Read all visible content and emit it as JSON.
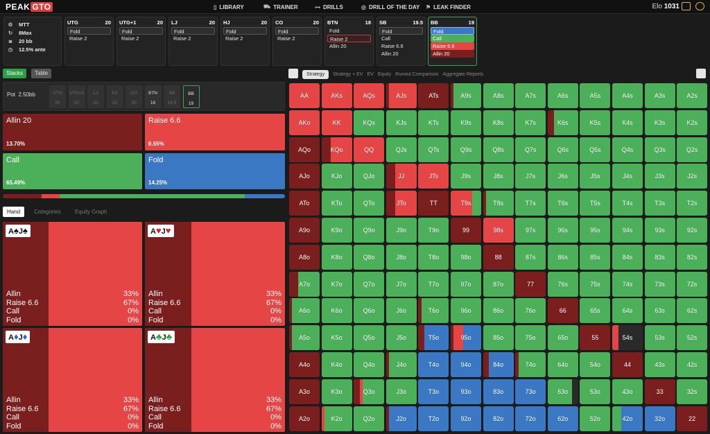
{
  "topbar": {
    "logo_a": "PEAK",
    "logo_b": "GTO",
    "nav": [
      {
        "icon": "book-icon",
        "glyph": "▯",
        "label": "LIBRARY"
      },
      {
        "icon": "car-icon",
        "glyph": "⛟",
        "label": "TRAINER"
      },
      {
        "icon": "dumbbell-icon",
        "glyph": "⊶",
        "label": "DRILLS"
      },
      {
        "icon": "target-icon",
        "glyph": "◎",
        "label": "DRILL OF THE DAY"
      },
      {
        "icon": "flag-icon",
        "glyph": "⚑",
        "label": "LEAK FINDER"
      }
    ],
    "elo_label": "Elo",
    "elo_value": "1031"
  },
  "game_info": [
    {
      "icon": "gear-icon",
      "glyph": "⚙",
      "text": "MTT"
    },
    {
      "icon": "refresh-icon",
      "glyph": "↻",
      "text": "8Max"
    },
    {
      "icon": "camera-icon",
      "glyph": "◙",
      "text": "20 bb"
    },
    {
      "icon": "clock-icon",
      "glyph": "◷",
      "text": "12.5% ante"
    }
  ],
  "positions": [
    {
      "name": "UTG",
      "stack": "20",
      "actions": [
        {
          "label": "Fold",
          "style": "sel"
        },
        {
          "label": "Raise 2",
          "style": ""
        }
      ]
    },
    {
      "name": "UTG+1",
      "stack": "20",
      "actions": [
        {
          "label": "Fold",
          "style": "sel"
        },
        {
          "label": "Raise 2",
          "style": ""
        }
      ]
    },
    {
      "name": "LJ",
      "stack": "20",
      "actions": [
        {
          "label": "Fold",
          "style": "sel"
        },
        {
          "label": "Raise 2",
          "style": ""
        }
      ]
    },
    {
      "name": "HJ",
      "stack": "20",
      "actions": [
        {
          "label": "Fold",
          "style": "sel"
        },
        {
          "label": "Raise 2",
          "style": ""
        }
      ]
    },
    {
      "name": "CO",
      "stack": "20",
      "actions": [
        {
          "label": "Fold",
          "style": "sel"
        },
        {
          "label": "Raise 2",
          "style": ""
        }
      ]
    },
    {
      "name": "BTN",
      "stack": "18",
      "actions": [
        {
          "label": "Fold",
          "style": ""
        },
        {
          "label": "Raise 2",
          "style": "raise-sel"
        },
        {
          "label": "Allin 20",
          "style": ""
        }
      ]
    },
    {
      "name": "SB",
      "stack": "19.5",
      "actions": [
        {
          "label": "Fold",
          "style": "sel"
        },
        {
          "label": "Call",
          "style": ""
        },
        {
          "label": "Raise 6.6",
          "style": ""
        },
        {
          "label": "Allin 20",
          "style": ""
        }
      ]
    },
    {
      "name": "BB",
      "stack": "19",
      "active": true,
      "actions": [
        {
          "label": "Fold",
          "style": "fold-b"
        },
        {
          "label": "Call",
          "style": "call-g"
        },
        {
          "label": "Raise 6.6",
          "style": "raise-r"
        },
        {
          "label": "Allin 20",
          "style": "allin-d"
        }
      ]
    }
  ],
  "view_toggle": {
    "stacks": "Stacks",
    "table": "Table"
  },
  "pot": {
    "label": "Pot",
    "value": "2.50bb",
    "chips": [
      {
        "pos": "UTG",
        "stack": "20"
      },
      {
        "pos": "UTG+1",
        "stack": "20"
      },
      {
        "pos": "LJ",
        "stack": "20"
      },
      {
        "pos": "HJ",
        "stack": "20"
      },
      {
        "pos": "CO",
        "stack": "20"
      },
      {
        "pos": "BTN",
        "stack": "18"
      },
      {
        "pos": "SB",
        "stack": "19.5"
      },
      {
        "pos": "BB",
        "stack": "19"
      }
    ]
  },
  "summary": {
    "allin": {
      "label": "Allin 20",
      "pct": "13.70%"
    },
    "raise": {
      "label": "Raise 6.6",
      "pct": "6.55%"
    },
    "call": {
      "label": "Call",
      "pct": "65.49%"
    },
    "fold": {
      "label": "Fold",
      "pct": "14.25%"
    }
  },
  "freq_bar": [
    {
      "color": "#7a1e1e",
      "pct": 13.7
    },
    {
      "color": "#e54545",
      "pct": 6.55
    },
    {
      "color": "#4caf5a",
      "pct": 65.49
    },
    {
      "color": "#3b78c4",
      "pct": 14.25
    }
  ],
  "detail_tabs": [
    "Hand",
    "Categories",
    "Equity Graph"
  ],
  "hands": [
    {
      "rank1": "A",
      "suit1": "♠",
      "rank2": "J",
      "suit2": "♠",
      "suit_color": "#111111",
      "labels": [
        "Allin",
        "Raise 6.6",
        "Call",
        "Fold"
      ],
      "values": [
        "33%",
        "67%",
        "0%",
        "0%"
      ],
      "allin_frac": 0.33
    },
    {
      "rank1": "A",
      "suit1": "♥",
      "rank2": "J",
      "suit2": "♥",
      "suit_color": "#d62828",
      "labels": [
        "Allin",
        "Raise 6.6",
        "Call",
        "Fold"
      ],
      "values": [
        "33%",
        "67%",
        "0%",
        "0%"
      ],
      "allin_frac": 0.33
    },
    {
      "rank1": "A",
      "suit1": "♦",
      "rank2": "J",
      "suit2": "♦",
      "suit_color": "#2d5fd6",
      "labels": [
        "Allin",
        "Raise 6.6",
        "Call",
        "Fold"
      ],
      "values": [
        "33%",
        "67%",
        "0%",
        "0%"
      ],
      "allin_frac": 0.33
    },
    {
      "rank1": "A",
      "suit1": "♣",
      "rank2": "J",
      "suit2": "♣",
      "suit_color": "#2e9e44",
      "labels": [
        "Allin",
        "Raise 6.6",
        "Call",
        "Fold"
      ],
      "values": [
        "33%",
        "67%",
        "0%",
        "0%"
      ],
      "allin_frac": 0.33
    }
  ],
  "grid_tabs": [
    "Strategy",
    "Strategy + EV",
    "EV",
    "Equity",
    "Runout Comparison",
    "Aggregate Reports"
  ],
  "colors": {
    "allin": "#7a1e1e",
    "raise": "#e54545",
    "call": "#4caf5a",
    "fold": "#3b78c4"
  },
  "ranks": [
    "A",
    "K",
    "Q",
    "J",
    "T",
    "9",
    "8",
    "7",
    "6",
    "5",
    "4",
    "3",
    "2"
  ],
  "grid": [
    [
      "r",
      "r",
      "r",
      "D1r9",
      "D",
      "D1g",
      "g",
      "g",
      "g",
      "g",
      "g",
      "g",
      "g"
    ],
    [
      "r",
      "r",
      "g",
      "g",
      "g",
      "g",
      "g",
      "g",
      "D2g",
      "g",
      "g",
      "g",
      "g"
    ],
    [
      "D",
      "D3r",
      "r",
      "g",
      "g",
      "g",
      "g",
      "g",
      "g",
      "g",
      "g",
      "g",
      "g"
    ],
    [
      "D",
      "g",
      "g",
      "D3r",
      "r",
      "g",
      "g",
      "g",
      "g",
      "g",
      "g",
      "g",
      "g"
    ],
    [
      "D",
      "g",
      "g",
      "D3r",
      "D",
      "r7g",
      "D1g",
      "g",
      "g",
      "g",
      "g",
      "g",
      "g"
    ],
    [
      "D",
      "g",
      "g",
      "g",
      "g",
      "D",
      "r",
      "g",
      "g",
      "g",
      "g",
      "g",
      "g"
    ],
    [
      "D",
      "g",
      "g",
      "g",
      "g",
      "g",
      "D",
      "g",
      "g",
      "g",
      "g",
      "g",
      "g"
    ],
    [
      "D3g",
      "g",
      "g",
      "g",
      "g",
      "g",
      "g",
      "D",
      "g",
      "g",
      "g",
      "g",
      "g"
    ],
    [
      "D1g",
      "g",
      "g",
      "g",
      "D1g",
      "g",
      "g",
      "g",
      "D",
      "g",
      "g",
      "g",
      "g"
    ],
    [
      "D1g",
      "g",
      "g",
      "g",
      "D2b",
      "D1r3b",
      "g",
      "g",
      "g",
      "D",
      "r2",
      "g",
      "g"
    ],
    [
      "D",
      "g",
      "g",
      "D1g",
      "b",
      "b",
      "D2b",
      "D1g",
      "g",
      "g",
      "D",
      "g",
      "g"
    ],
    [
      "D",
      "g",
      "D2r1g",
      "g",
      "b",
      "b",
      "b",
      "b",
      "g8",
      "g",
      "g",
      "D",
      "g"
    ],
    [
      "D",
      "r1g",
      "g",
      "D1b",
      "b",
      "b",
      "b",
      "b",
      "b",
      "g",
      "g3b",
      "b",
      "D"
    ]
  ]
}
